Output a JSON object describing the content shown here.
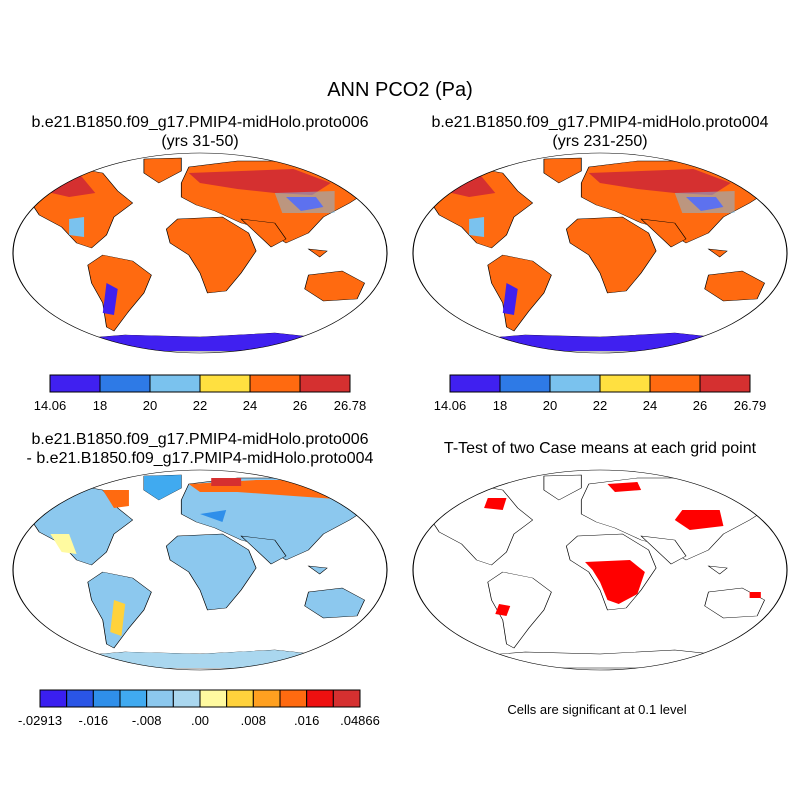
{
  "title": "ANN PCO2 (Pa)",
  "colors": {
    "ocean": "#ffffff",
    "outline": "#000000",
    "significant": "#ff0000"
  },
  "chart_data": [
    {
      "type": "heatmap",
      "title_line1": "b.e21.B1850.f09_g17.PMIP4-midHolo.proto006",
      "title_line2": "(yrs 31-50)",
      "colorbar": {
        "colors": [
          "#4020f0",
          "#2e7ae6",
          "#7ac2ee",
          "#ffe040",
          "#ff6a10",
          "#d53030"
        ],
        "labels": [
          "14.06",
          "18",
          "20",
          "22",
          "24",
          "26",
          "26.78"
        ]
      }
    },
    {
      "type": "heatmap",
      "title_line1": "b.e21.B1850.f09_g17.PMIP4-midHolo.proto004",
      "title_line2": "(yrs 231-250)",
      "colorbar": {
        "colors": [
          "#4020f0",
          "#2e7ae6",
          "#7ac2ee",
          "#ffe040",
          "#ff6a10",
          "#d53030"
        ],
        "labels": [
          "14.06",
          "18",
          "20",
          "22",
          "24",
          "26",
          "26.79"
        ]
      }
    },
    {
      "type": "heatmap",
      "title_line1": "b.e21.B1850.f09_g17.PMIP4-midHolo.proto006",
      "title_line2": "- b.e21.B1850.f09_g17.PMIP4-midHolo.proto004",
      "colorbar": {
        "colors": [
          "#3a1ff0",
          "#2a55e6",
          "#2f8fea",
          "#40aaf0",
          "#8cc8ee",
          "#aad7ef",
          "#fffaa0",
          "#ffd23c",
          "#ffa020",
          "#ff6a10",
          "#ee1010",
          "#d53030"
        ],
        "labels": [
          "-.02913",
          "-.016",
          "-.008",
          ".00",
          ".008",
          ".016",
          ".04866"
        ]
      }
    },
    {
      "type": "heatmap",
      "title_line1": "T-Test of two Case means at each grid point",
      "note": "Cells are significant at 0.1 level"
    }
  ]
}
